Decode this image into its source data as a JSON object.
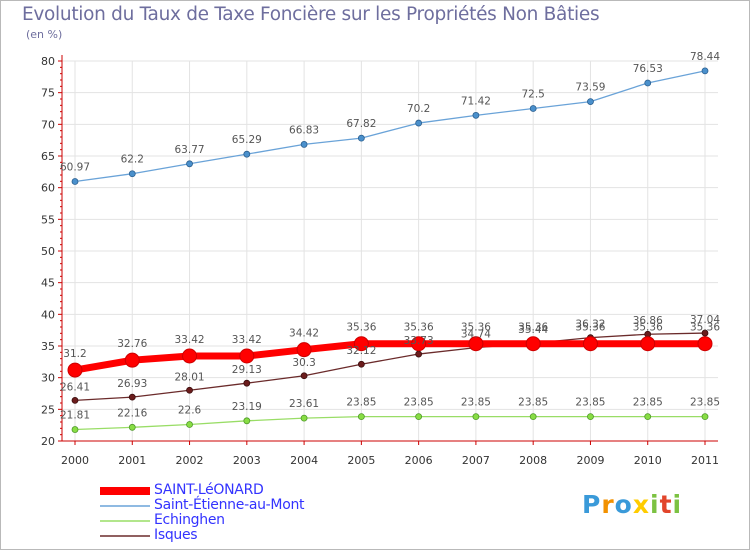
{
  "header": {
    "title": "Evolution du Taux de Taxe Foncière sur les Propriétés Non Bâties",
    "unit": "(en %)"
  },
  "logo": {
    "text": "Proxiti"
  },
  "colors": {
    "axis": "#cc0000",
    "grid": "#e3e3e3",
    "saint_leonard": "#ff0000",
    "saint_etienne": "#6aa3d8",
    "echinghen": "#99dd66",
    "isques": "#6b2b2b",
    "legend_text": "#3333ff",
    "title": "#6e6e9e"
  },
  "chart_data": {
    "type": "line",
    "title": "Evolution du Taux de Taxe Foncière sur les Propriétés Non Bâties",
    "ylabel": "(en %)",
    "xlabel": "",
    "categories": [
      "2000",
      "2001",
      "2002",
      "2003",
      "2004",
      "2005",
      "2006",
      "2007",
      "2008",
      "2009",
      "2010",
      "2011"
    ],
    "ylim": [
      20,
      80
    ],
    "yticks": [
      20,
      25,
      30,
      35,
      40,
      45,
      50,
      55,
      60,
      65,
      70,
      75,
      80
    ],
    "grid": true,
    "legend": "bottom-left",
    "series": [
      {
        "name": "SAINT-LéONARD",
        "color": "#ff0000",
        "values": [
          31.2,
          32.76,
          33.42,
          33.42,
          34.42,
          35.36,
          35.36,
          35.36,
          35.36,
          35.36,
          35.36,
          35.36
        ],
        "labels": [
          "31.2",
          "32.76",
          "33.42",
          "33.42",
          "34.42",
          "35.36",
          "35.36",
          "35.36",
          "35.36",
          "35.36",
          "35.36",
          "35.36"
        ]
      },
      {
        "name": "Saint-Étienne-au-Mont",
        "color": "#6aa3d8",
        "values": [
          60.97,
          62.2,
          63.77,
          65.29,
          66.83,
          67.82,
          70.2,
          71.42,
          72.5,
          73.59,
          76.53,
          78.44
        ],
        "labels": [
          "60.97",
          "62.2",
          "63.77",
          "65.29",
          "66.83",
          "67.82",
          "70.2",
          "71.42",
          "72.5",
          "73.59",
          "76.53",
          "78.44"
        ]
      },
      {
        "name": "Echinghen",
        "color": "#99dd66",
        "values": [
          21.81,
          22.16,
          22.6,
          23.19,
          23.61,
          23.85,
          23.85,
          23.85,
          23.85,
          23.85,
          23.85,
          23.85
        ],
        "labels": [
          "21.81",
          "22.16",
          "22.6",
          "23.19",
          "23.61",
          "23.85",
          "23.85",
          "23.85",
          "23.85",
          "23.85",
          "23.85",
          "23.85"
        ]
      },
      {
        "name": "Isques",
        "color": "#6b2b2b",
        "values": [
          26.41,
          26.93,
          28.01,
          29.13,
          30.3,
          32.12,
          33.73,
          34.74,
          35.44,
          36.32,
          36.86,
          37.04
        ],
        "labels": [
          "26.41",
          "26.93",
          "28.01",
          "29.13",
          "30.3",
          "32.12",
          "33.73",
          "34.74",
          "35.44",
          "36.32",
          "36.86",
          "37.04"
        ]
      }
    ]
  }
}
